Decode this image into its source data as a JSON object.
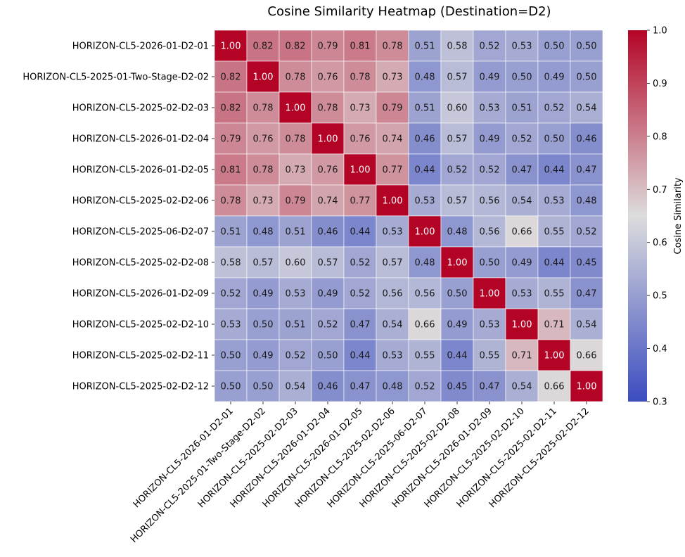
{
  "chart_data": {
    "type": "heatmap",
    "title": "Cosine Similarity Heatmap (Destination=D2)",
    "xlabel": "",
    "ylabel": "",
    "row_labels": [
      "HORIZON-CL5-2026-01-D2-01",
      "HORIZON-CL5-2025-01-Two-Stage-D2-02",
      "HORIZON-CL5-2025-02-D2-03",
      "HORIZON-CL5-2026-01-D2-04",
      "HORIZON-CL5-2026-01-D2-05",
      "HORIZON-CL5-2025-02-D2-06",
      "HORIZON-CL5-2025-06-D2-07",
      "HORIZON-CL5-2025-02-D2-08",
      "HORIZON-CL5-2026-01-D2-09",
      "HORIZON-CL5-2025-02-D2-10",
      "HORIZON-CL5-2025-02-D2-11",
      "HORIZON-CL5-2025-02-D2-12"
    ],
    "col_labels": [
      "HORIZON-CL5-2026-01-D2-01",
      "HORIZON-CL5-2025-01-Two-Stage-D2-02",
      "HORIZON-CL5-2025-02-D2-03",
      "HORIZON-CL5-2026-01-D2-04",
      "HORIZON-CL5-2026-01-D2-05",
      "HORIZON-CL5-2025-02-D2-06",
      "HORIZON-CL5-2025-06-D2-07",
      "HORIZON-CL5-2025-02-D2-08",
      "HORIZON-CL5-2026-01-D2-09",
      "HORIZON-CL5-2025-02-D2-10",
      "HORIZON-CL5-2025-02-D2-11",
      "HORIZON-CL5-2025-02-D2-12"
    ],
    "values": [
      [
        1.0,
        0.82,
        0.82,
        0.79,
        0.81,
        0.78,
        0.51,
        0.58,
        0.52,
        0.53,
        0.5,
        0.5
      ],
      [
        0.82,
        1.0,
        0.78,
        0.76,
        0.78,
        0.73,
        0.48,
        0.57,
        0.49,
        0.5,
        0.49,
        0.5
      ],
      [
        0.82,
        0.78,
        1.0,
        0.78,
        0.73,
        0.79,
        0.51,
        0.6,
        0.53,
        0.51,
        0.52,
        0.54
      ],
      [
        0.79,
        0.76,
        0.78,
        1.0,
        0.76,
        0.74,
        0.46,
        0.57,
        0.49,
        0.52,
        0.5,
        0.46
      ],
      [
        0.81,
        0.78,
        0.73,
        0.76,
        1.0,
        0.77,
        0.44,
        0.52,
        0.52,
        0.47,
        0.44,
        0.47
      ],
      [
        0.78,
        0.73,
        0.79,
        0.74,
        0.77,
        1.0,
        0.53,
        0.57,
        0.56,
        0.54,
        0.53,
        0.48
      ],
      [
        0.51,
        0.48,
        0.51,
        0.46,
        0.44,
        0.53,
        1.0,
        0.48,
        0.56,
        0.66,
        0.55,
        0.52
      ],
      [
        0.58,
        0.57,
        0.6,
        0.57,
        0.52,
        0.57,
        0.48,
        1.0,
        0.5,
        0.49,
        0.44,
        0.45
      ],
      [
        0.52,
        0.49,
        0.53,
        0.49,
        0.52,
        0.56,
        0.56,
        0.5,
        1.0,
        0.53,
        0.55,
        0.47
      ],
      [
        0.53,
        0.5,
        0.51,
        0.52,
        0.47,
        0.54,
        0.66,
        0.49,
        0.53,
        1.0,
        0.71,
        0.54
      ],
      [
        0.5,
        0.49,
        0.52,
        0.5,
        0.44,
        0.53,
        0.55,
        0.44,
        0.55,
        0.71,
        1.0,
        0.66
      ],
      [
        0.5,
        0.5,
        0.54,
        0.46,
        0.47,
        0.48,
        0.52,
        0.45,
        0.47,
        0.54,
        0.66,
        1.0
      ]
    ],
    "annotation_format": "2 decimals",
    "colormap": "coolwarm",
    "colormap_stops": [
      "#3b4cc0",
      "#dddddd",
      "#b40426"
    ],
    "vmin": 0.3,
    "vmax": 1.0,
    "grid": false,
    "colorbar": {
      "label": "Cosine Similarity",
      "ticks": [
        0.3,
        0.4,
        0.5,
        0.6,
        0.7,
        0.8,
        0.9,
        1.0
      ],
      "tick_labels": [
        "0.3",
        "0.4",
        "0.5",
        "0.6",
        "0.7",
        "0.8",
        "0.9",
        "1.0"
      ],
      "placement": "right"
    }
  }
}
